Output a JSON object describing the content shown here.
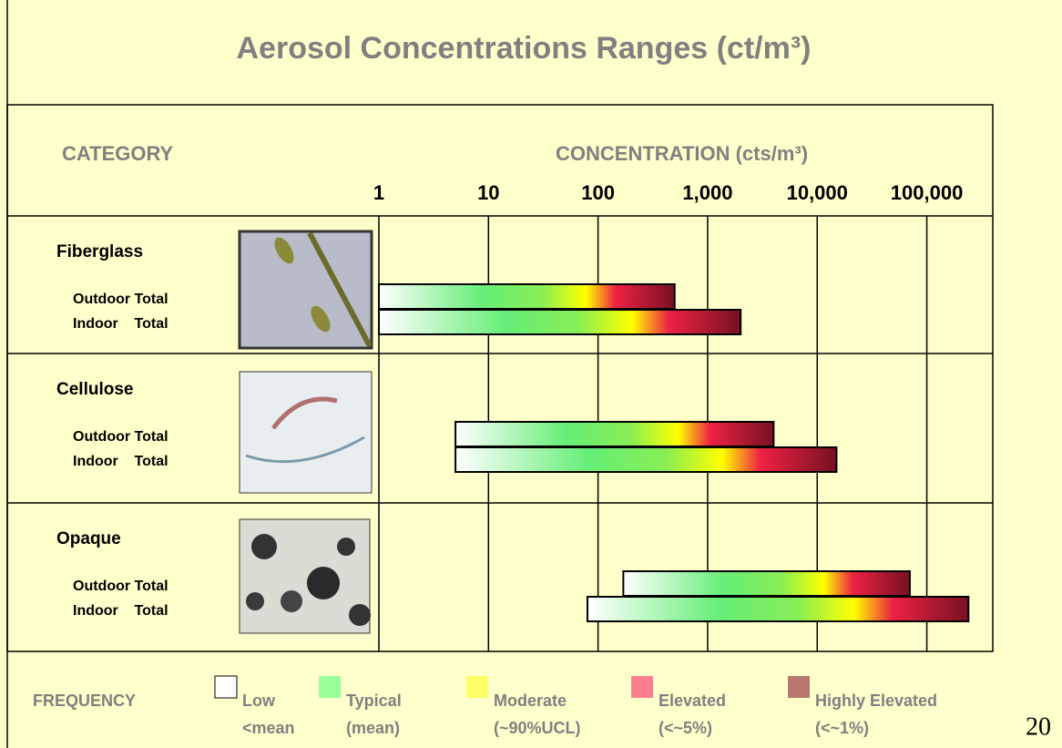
{
  "chart_data": {
    "type": "range-bar",
    "title": "Aerosol Concentrations Ranges (ct/m³)",
    "category_header": "CATEGORY",
    "xlabel": "CONCENTRATION (cts/m³)",
    "log_x": true,
    "xlim": [
      1,
      400000
    ],
    "xticks": [
      1,
      10,
      100,
      {
        "value": 1000,
        "label": "1,000"
      },
      {
        "value": 10000,
        "label": "10,000"
      },
      {
        "value": 100000,
        "label": "100,000"
      }
    ],
    "grid": true,
    "groups": [
      {
        "name": "Fiberglass",
        "series": [
          {
            "name": "Outdoor Total",
            "low": 1,
            "high": 500
          },
          {
            "name": "Indoor    Total",
            "low": 1,
            "high": 2000
          }
        ]
      },
      {
        "name": "Cellulose",
        "series": [
          {
            "name": "Outdoor Total",
            "low": 5,
            "high": 4000
          },
          {
            "name": "Indoor    Total",
            "low": 5,
            "high": 15000
          }
        ]
      },
      {
        "name": "Opaque",
        "series": [
          {
            "name": "Outdoor Total",
            "low": 170,
            "high": 70000
          },
          {
            "name": "Indoor    Total",
            "low": 80,
            "high": 240000
          }
        ]
      }
    ],
    "legend": {
      "title": "FREQUENCY",
      "items": [
        {
          "name": "Low",
          "note": "<mean",
          "color": "#ffffff"
        },
        {
          "name": "Typical",
          "note": "(mean)",
          "color": "#99ff99"
        },
        {
          "name": "Moderate",
          "note": "(~90%UCL)",
          "color": "#ffff66"
        },
        {
          "name": "Elevated",
          "note": "(<~5%)",
          "color": "#ff7f8f"
        },
        {
          "name": "Highly Elevated",
          "note": "(<~1%)",
          "color": "#b87870"
        }
      ]
    }
  },
  "page_number": "20"
}
